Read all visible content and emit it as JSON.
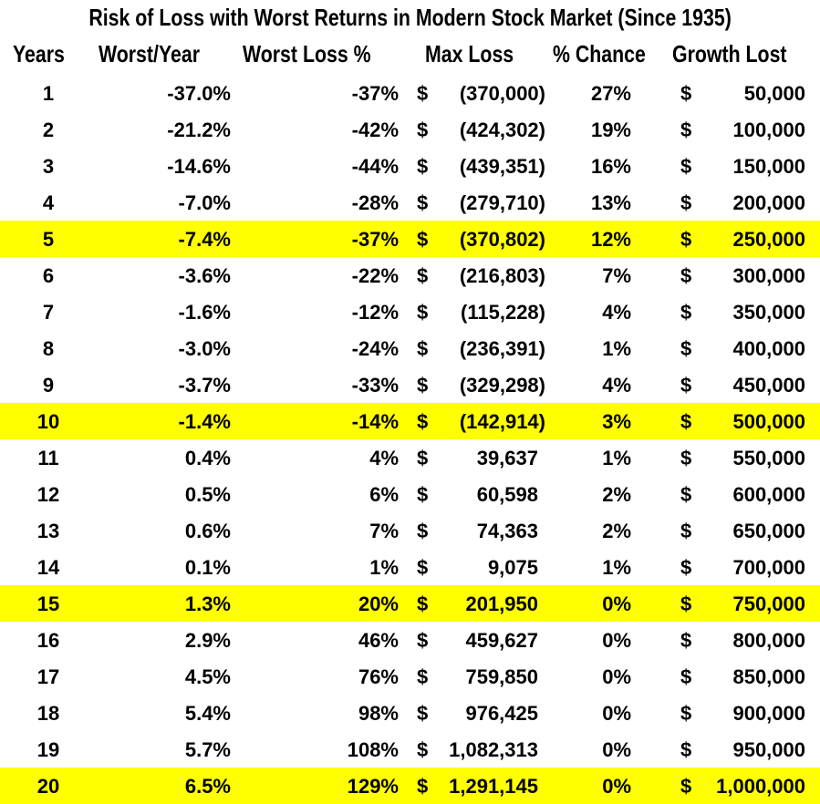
{
  "title": "Risk of Loss with Worst Returns in Modern Stock Market (Since 1935)",
  "headers": [
    "Years",
    "Worst/Year",
    "Worst Loss %",
    "Max Loss",
    "% Chance",
    "Growth Lost"
  ],
  "highlight_color": "#ffff00",
  "rows": [
    {
      "year": "1",
      "worst_year": "-37.0%",
      "worst_loss": "-37%",
      "max_loss": "(370,000)",
      "chance": "27%",
      "growth": "50,000",
      "highlight": false
    },
    {
      "year": "2",
      "worst_year": "-21.2%",
      "worst_loss": "-42%",
      "max_loss": "(424,302)",
      "chance": "19%",
      "growth": "100,000",
      "highlight": false
    },
    {
      "year": "3",
      "worst_year": "-14.6%",
      "worst_loss": "-44%",
      "max_loss": "(439,351)",
      "chance": "16%",
      "growth": "150,000",
      "highlight": false
    },
    {
      "year": "4",
      "worst_year": "-7.0%",
      "worst_loss": "-28%",
      "max_loss": "(279,710)",
      "chance": "13%",
      "growth": "200,000",
      "highlight": false
    },
    {
      "year": "5",
      "worst_year": "-7.4%",
      "worst_loss": "-37%",
      "max_loss": "(370,802)",
      "chance": "12%",
      "growth": "250,000",
      "highlight": true
    },
    {
      "year": "6",
      "worst_year": "-3.6%",
      "worst_loss": "-22%",
      "max_loss": "(216,803)",
      "chance": "7%",
      "growth": "300,000",
      "highlight": false
    },
    {
      "year": "7",
      "worst_year": "-1.6%",
      "worst_loss": "-12%",
      "max_loss": "(115,228)",
      "chance": "4%",
      "growth": "350,000",
      "highlight": false
    },
    {
      "year": "8",
      "worst_year": "-3.0%",
      "worst_loss": "-24%",
      "max_loss": "(236,391)",
      "chance": "1%",
      "growth": "400,000",
      "highlight": false
    },
    {
      "year": "9",
      "worst_year": "-3.7%",
      "worst_loss": "-33%",
      "max_loss": "(329,298)",
      "chance": "4%",
      "growth": "450,000",
      "highlight": false
    },
    {
      "year": "10",
      "worst_year": "-1.4%",
      "worst_loss": "-14%",
      "max_loss": "(142,914)",
      "chance": "3%",
      "growth": "500,000",
      "highlight": true
    },
    {
      "year": "11",
      "worst_year": "0.4%",
      "worst_loss": "4%",
      "max_loss": "39,637",
      "chance": "1%",
      "growth": "550,000",
      "highlight": false
    },
    {
      "year": "12",
      "worst_year": "0.5%",
      "worst_loss": "6%",
      "max_loss": "60,598",
      "chance": "2%",
      "growth": "600,000",
      "highlight": false
    },
    {
      "year": "13",
      "worst_year": "0.6%",
      "worst_loss": "7%",
      "max_loss": "74,363",
      "chance": "2%",
      "growth": "650,000",
      "highlight": false
    },
    {
      "year": "14",
      "worst_year": "0.1%",
      "worst_loss": "1%",
      "max_loss": "9,075",
      "chance": "1%",
      "growth": "700,000",
      "highlight": false
    },
    {
      "year": "15",
      "worst_year": "1.3%",
      "worst_loss": "20%",
      "max_loss": "201,950",
      "chance": "0%",
      "growth": "750,000",
      "highlight": true
    },
    {
      "year": "16",
      "worst_year": "2.9%",
      "worst_loss": "46%",
      "max_loss": "459,627",
      "chance": "0%",
      "growth": "800,000",
      "highlight": false
    },
    {
      "year": "17",
      "worst_year": "4.5%",
      "worst_loss": "76%",
      "max_loss": "759,850",
      "chance": "0%",
      "growth": "850,000",
      "highlight": false
    },
    {
      "year": "18",
      "worst_year": "5.4%",
      "worst_loss": "98%",
      "max_loss": "976,425",
      "chance": "0%",
      "growth": "900,000",
      "highlight": false
    },
    {
      "year": "19",
      "worst_year": "5.7%",
      "worst_loss": "108%",
      "max_loss": "1,082,313",
      "chance": "0%",
      "growth": "950,000",
      "highlight": false
    },
    {
      "year": "20",
      "worst_year": "6.5%",
      "worst_loss": "129%",
      "max_loss": "1,291,145",
      "chance": "0%",
      "growth": "1,000,000",
      "highlight": true
    }
  ],
  "currency_symbol": "$"
}
